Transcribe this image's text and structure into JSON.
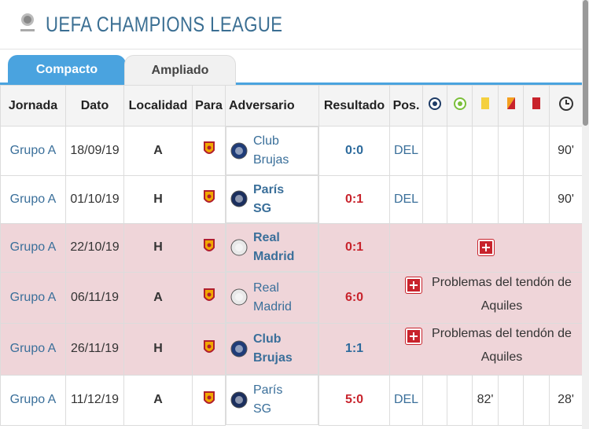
{
  "header": {
    "title": "UEFA CHAMPIONS LEAGUE"
  },
  "tabs": [
    {
      "label": "Compacto",
      "active": true
    },
    {
      "label": "Ampliado",
      "active": false
    }
  ],
  "table": {
    "columns": [
      "Jornada",
      "Dato",
      "Localidad",
      "Para",
      "Adversario",
      "Resultado",
      "Pos."
    ],
    "rows": [
      {
        "jornada": "Grupo A",
        "dato": "18/09/19",
        "localidad": "A",
        "adversario": "Club Brujas",
        "crest": "#1f3c78",
        "resultado": "0:0",
        "result_color": "#2c6a9c",
        "pos": "DEL",
        "minutos": "90'"
      },
      {
        "jornada": "Grupo A",
        "dato": "01/10/19",
        "localidad": "H",
        "adversario": "París SG",
        "crest": "#1b2f5e",
        "resultado": "0:1",
        "result_color": "#c8232c",
        "pos": "DEL",
        "minutos": "90'"
      },
      {
        "jornada": "Grupo A",
        "dato": "22/10/19",
        "localidad": "H",
        "adversario": "Real Madrid",
        "crest": "#e9e9e9",
        "resultado": "0:1",
        "result_color": "#c8232c",
        "lesion": true
      },
      {
        "jornada": "Grupo A",
        "dato": "06/11/19",
        "localidad": "A",
        "adversario": "Real Madrid",
        "crest": "#e9e9e9",
        "resultado": "6:0",
        "result_color": "#c8232c",
        "lesion": true,
        "nota": "Problemas del tendón de Aquiles"
      },
      {
        "jornada": "Grupo A",
        "dato": "26/11/19",
        "localidad": "H",
        "adversario": "Club Brujas",
        "crest": "#1f3c78",
        "resultado": "1:1",
        "result_color": "#2c6a9c",
        "lesion": true,
        "nota": "Problemas del tendón de Aquiles"
      },
      {
        "jornada": "Grupo A",
        "dato": "11/12/19",
        "localidad": "A",
        "adversario": "París SG",
        "crest": "#1b2f5e",
        "resultado": "5:0",
        "result_color": "#c8232c",
        "pos": "DEL",
        "amarillas": "82'",
        "minutos": "28'"
      }
    ]
  }
}
